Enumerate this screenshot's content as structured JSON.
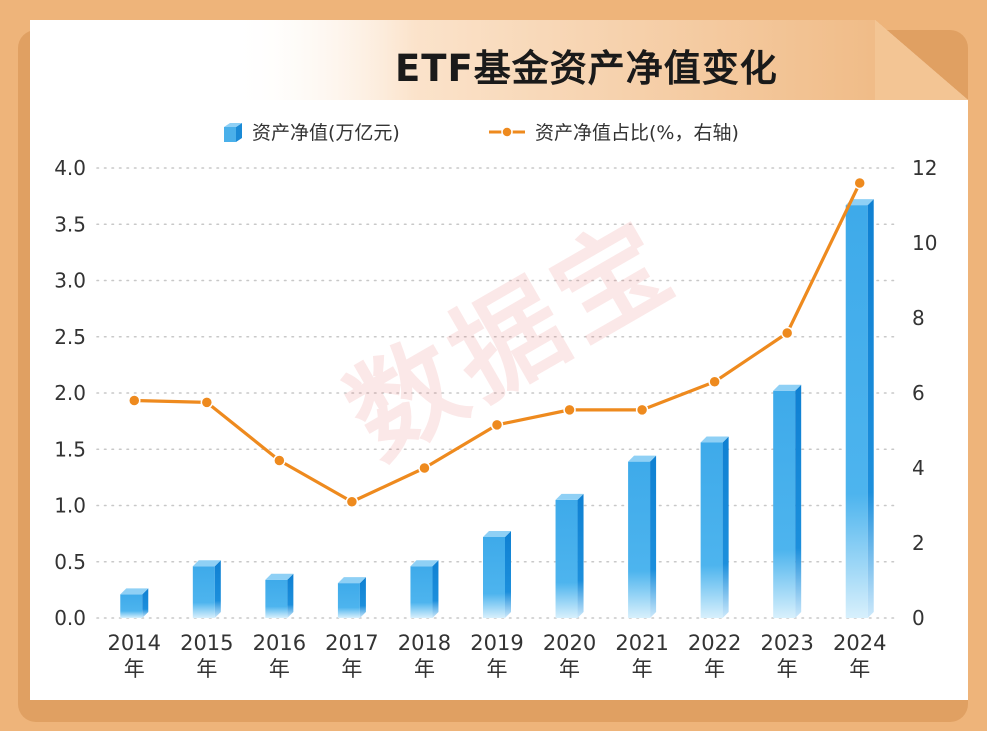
{
  "title": "ETF基金资产净值变化",
  "watermark": "数据宝",
  "legend": {
    "bar_label": "资产净值(万亿元)",
    "line_label": "资产净值占比(%，右轴)"
  },
  "colors": {
    "background": "#eeb47a",
    "panel": "#ffffff",
    "bar_front": "#4ab0ea",
    "bar_side": "#1a8ad6",
    "bar_top": "#8fd0f5",
    "line": "#ee8a1e",
    "marker_fill": "#ee8a1e",
    "marker_stroke": "#ffffff",
    "grid": "#c8c8c8"
  },
  "chart_data": {
    "type": "bar+line",
    "categories": [
      "2014\n年",
      "2015\n年",
      "2016\n年",
      "2017\n年",
      "2018\n年",
      "2019\n年",
      "2020\n年",
      "2021\n年",
      "2022\n年",
      "2023\n年",
      "2024\n年"
    ],
    "category_lines": [
      [
        "2014",
        "年"
      ],
      [
        "2015",
        "年"
      ],
      [
        "2016",
        "年"
      ],
      [
        "2017",
        "年"
      ],
      [
        "2018",
        "年"
      ],
      [
        "2019",
        "年"
      ],
      [
        "2020",
        "年"
      ],
      [
        "2021",
        "年"
      ],
      [
        "2022",
        "年"
      ],
      [
        "2023",
        "年"
      ],
      [
        "2024",
        "年"
      ]
    ],
    "series": [
      {
        "name": "资产净值(万亿元)",
        "type": "bar",
        "axis": "left",
        "values": [
          0.21,
          0.46,
          0.34,
          0.31,
          0.46,
          0.72,
          1.05,
          1.39,
          1.56,
          2.02,
          3.67
        ]
      },
      {
        "name": "资产净值占比(%，右轴)",
        "type": "line",
        "axis": "right",
        "values": [
          5.8,
          5.75,
          4.2,
          3.1,
          4.0,
          5.15,
          5.55,
          5.55,
          6.3,
          7.6,
          11.6
        ]
      }
    ],
    "y_left": {
      "min": 0,
      "max": 4.0,
      "ticks": [
        "0.0",
        "0.5",
        "1.0",
        "1.5",
        "2.0",
        "2.5",
        "3.0",
        "3.5",
        "4.0"
      ]
    },
    "y_right": {
      "min": 0,
      "max": 12,
      "ticks": [
        "0",
        "2",
        "4",
        "6",
        "8",
        "10",
        "12"
      ]
    },
    "grid": true,
    "legend_position": "top"
  }
}
